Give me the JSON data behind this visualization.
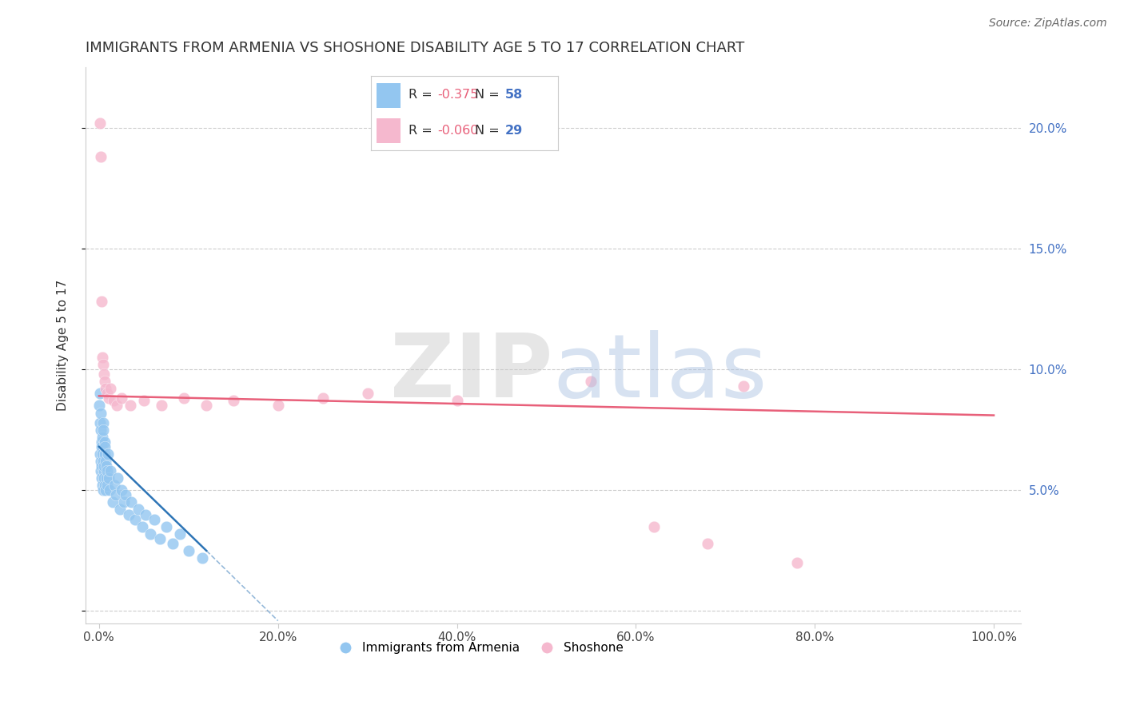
{
  "title": "IMMIGRANTS FROM ARMENIA VS SHOSHONE DISABILITY AGE 5 TO 17 CORRELATION CHART",
  "source": "Source: ZipAtlas.com",
  "ylabel": "Disability Age 5 to 17",
  "x_ticks": [
    0.0,
    20.0,
    40.0,
    60.0,
    80.0,
    100.0
  ],
  "x_tick_labels": [
    "0.0%",
    "20.0%",
    "40.0%",
    "60.0%",
    "80.0%",
    "100.0%"
  ],
  "y_ticks": [
    0.0,
    5.0,
    10.0,
    15.0,
    20.0
  ],
  "y_tick_labels": [
    "",
    "5.0%",
    "10.0%",
    "15.0%",
    "20.0%"
  ],
  "xlim": [
    -1.5,
    103
  ],
  "ylim": [
    -0.5,
    22.5
  ],
  "blue_color": "#93C6F0",
  "pink_color": "#F5B8CE",
  "blue_line_color": "#2E75B6",
  "pink_line_color": "#E8607A",
  "blue_label": "Immigrants from Armenia",
  "pink_label": "Shoshone",
  "blue_R": "-0.375",
  "blue_N": "58",
  "pink_R": "-0.060",
  "pink_N": "29",
  "right_tick_color": "#4472C4",
  "grid_color": "#CCCCCC",
  "background_color": "#FFFFFF",
  "title_fontsize": 13,
  "axis_label_fontsize": 11,
  "tick_fontsize": 11,
  "blue_scatter_x": [
    0.05,
    0.08,
    0.1,
    0.12,
    0.15,
    0.18,
    0.2,
    0.22,
    0.25,
    0.28,
    0.3,
    0.32,
    0.35,
    0.38,
    0.4,
    0.42,
    0.45,
    0.48,
    0.5,
    0.52,
    0.55,
    0.58,
    0.6,
    0.62,
    0.65,
    0.68,
    0.7,
    0.75,
    0.8,
    0.85,
    0.9,
    0.95,
    1.0,
    1.1,
    1.2,
    1.3,
    1.5,
    1.7,
    1.9,
    2.1,
    2.3,
    2.5,
    2.8,
    3.0,
    3.3,
    3.6,
    4.0,
    4.4,
    4.8,
    5.2,
    5.7,
    6.2,
    6.8,
    7.5,
    8.2,
    9.0,
    10.0,
    11.5
  ],
  "blue_scatter_y": [
    8.5,
    9.0,
    6.5,
    7.8,
    6.2,
    7.5,
    5.8,
    8.2,
    6.0,
    7.0,
    5.5,
    6.8,
    7.2,
    5.2,
    6.5,
    7.8,
    5.0,
    6.2,
    7.5,
    5.8,
    6.0,
    5.5,
    7.0,
    6.5,
    5.2,
    6.8,
    5.0,
    6.2,
    5.5,
    6.0,
    5.8,
    5.2,
    6.5,
    5.5,
    5.0,
    5.8,
    4.5,
    5.2,
    4.8,
    5.5,
    4.2,
    5.0,
    4.5,
    4.8,
    4.0,
    4.5,
    3.8,
    4.2,
    3.5,
    4.0,
    3.2,
    3.8,
    3.0,
    3.5,
    2.8,
    3.2,
    2.5,
    2.2
  ],
  "pink_scatter_x": [
    0.08,
    0.15,
    0.25,
    0.35,
    0.45,
    0.55,
    0.65,
    0.75,
    0.9,
    1.1,
    1.3,
    1.6,
    2.0,
    2.5,
    3.5,
    5.0,
    7.0,
    9.5,
    12.0,
    15.0,
    20.0,
    25.0,
    30.0,
    40.0,
    55.0,
    62.0,
    68.0,
    72.0,
    78.0
  ],
  "pink_scatter_y": [
    20.2,
    18.8,
    12.8,
    10.5,
    10.2,
    9.8,
    9.5,
    9.2,
    9.0,
    8.8,
    9.2,
    8.7,
    8.5,
    8.8,
    8.5,
    8.7,
    8.5,
    8.8,
    8.5,
    8.7,
    8.5,
    8.8,
    9.0,
    8.7,
    9.5,
    3.5,
    2.8,
    9.3,
    2.0
  ],
  "blue_trend_x0": 0.0,
  "blue_trend_y0": 6.8,
  "blue_trend_x1": 12.0,
  "blue_trend_y1": 2.5,
  "dash_trend_x0": 12.0,
  "dash_trend_y0": 2.5,
  "dash_trend_x1": 20.0,
  "dash_trend_y1": -0.4,
  "pink_trend_x0": 0.0,
  "pink_trend_y0": 8.9,
  "pink_trend_x1": 100.0,
  "pink_trend_y1": 8.1
}
